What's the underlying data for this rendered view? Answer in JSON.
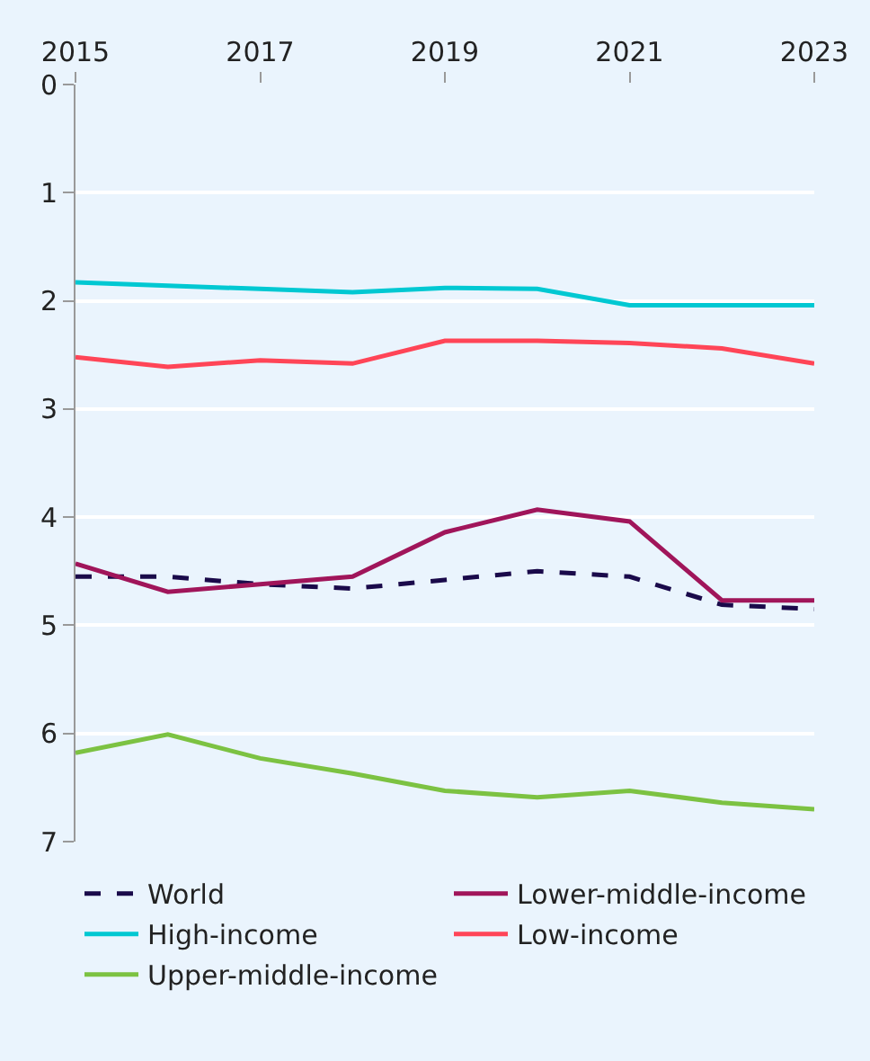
{
  "chart_data": {
    "type": "line",
    "x": [
      2015,
      2016,
      2017,
      2018,
      2019,
      2020,
      2021,
      2022,
      2023
    ],
    "xlim": [
      2015,
      2023
    ],
    "xticks": [
      2015,
      2017,
      2019,
      2021,
      2023
    ],
    "ylim": [
      7,
      0
    ],
    "yticks": [
      0,
      1,
      2,
      3,
      4,
      5,
      6,
      7
    ],
    "grid": "y",
    "legend": "bottom",
    "marker": "none",
    "series": [
      {
        "name": "World",
        "color": "#1a0a4a",
        "line_style": "dashed",
        "values": [
          4.55,
          4.55,
          4.62,
          4.66,
          4.58,
          4.5,
          4.55,
          4.81,
          4.85
        ]
      },
      {
        "name": "Lower-middle-income",
        "color": "#a0155a",
        "values": [
          4.43,
          4.69,
          4.62,
          4.55,
          4.14,
          3.93,
          4.04,
          4.77,
          4.77
        ]
      },
      {
        "name": "High-income",
        "color": "#00c8d2",
        "values": [
          1.83,
          1.86,
          1.89,
          1.92,
          1.88,
          1.89,
          2.04,
          2.04,
          2.04
        ]
      },
      {
        "name": "Low-income",
        "color": "#ff4557",
        "values": [
          2.52,
          2.61,
          2.55,
          2.58,
          2.37,
          2.37,
          2.39,
          2.44,
          2.58
        ]
      },
      {
        "name": "Upper-middle-income",
        "color": "#7cc242",
        "values": [
          6.18,
          6.01,
          6.23,
          6.37,
          6.53,
          6.59,
          6.53,
          6.64,
          6.7
        ]
      }
    ]
  }
}
